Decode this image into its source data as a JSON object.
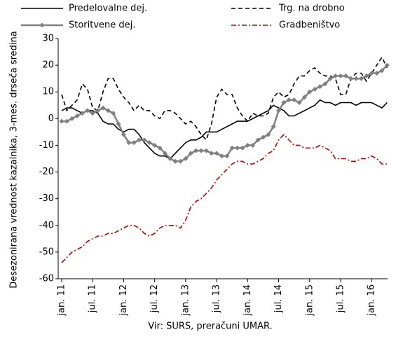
{
  "chart_data": {
    "type": "line",
    "y_label": "Desezonirana vrednost kazalnika, 3-mes. drseča sredina",
    "source": "Vir: SURS, preračuni UMAR.",
    "categories": [
      "jan. 11",
      null,
      null,
      null,
      null,
      null,
      "jul. 11",
      null,
      null,
      null,
      null,
      null,
      "jan. 12",
      null,
      null,
      null,
      null,
      null,
      "jul. 12",
      null,
      null,
      null,
      null,
      null,
      "jan. 13",
      null,
      null,
      null,
      null,
      null,
      "jul. 13",
      null,
      null,
      null,
      null,
      null,
      "jan. 14",
      null,
      null,
      null,
      null,
      null,
      "jul. 14",
      null,
      null,
      null,
      null,
      null,
      "jan. 15",
      null,
      null,
      null,
      null,
      null,
      "jul. 15",
      null,
      null,
      null,
      null,
      null,
      "jan. 16",
      null,
      null,
      null
    ],
    "ylim": [
      -60,
      30
    ],
    "yticks": [
      -60,
      -50,
      -40,
      -30,
      -20,
      -10,
      0,
      10,
      20,
      30
    ],
    "series": [
      {
        "name": "Predelovalne dej.",
        "color": "#000000",
        "dash": "solid",
        "values": [
          3,
          4,
          4,
          3,
          2,
          3,
          3,
          2,
          -1,
          -2,
          -2,
          -4,
          -5,
          -4,
          -4,
          -6,
          -9,
          -11,
          -13,
          -14,
          -14,
          -15,
          -13,
          -11,
          -9,
          -8,
          -8,
          -7,
          -5,
          -5,
          -5,
          -4,
          -3,
          -2,
          -1,
          -1,
          -1,
          0,
          1,
          2,
          3,
          5,
          4,
          3,
          1,
          1,
          2,
          3,
          4,
          5,
          7,
          6,
          6,
          5,
          6,
          6,
          6,
          5,
          6,
          6,
          6,
          5,
          4,
          6
        ]
      },
      {
        "name": "Trg. na drobno",
        "color": "#000000",
        "dash": "dashed",
        "values": [
          9,
          3,
          5,
          7,
          13,
          11,
          4,
          3,
          10,
          15,
          15,
          11,
          8,
          6,
          3,
          5,
          3,
          3,
          1,
          0,
          3,
          3,
          2,
          0,
          -2,
          -1,
          -3,
          -6,
          -8,
          -2,
          8,
          11,
          9,
          9,
          4,
          1,
          -1,
          2,
          1,
          1,
          2,
          8,
          10,
          8,
          9,
          13,
          16,
          16,
          18,
          19,
          17,
          16,
          16,
          15,
          9,
          9,
          15,
          17,
          17,
          14,
          17,
          20,
          23,
          19
        ]
      },
      {
        "name": "Storitvene dej.",
        "color": "#808080",
        "dash": "solid",
        "marker": "diamond",
        "values": [
          -1,
          -1,
          0,
          1,
          2,
          3,
          2,
          3,
          4,
          3,
          2,
          -2,
          -6,
          -9,
          -9,
          -8,
          -8,
          -9,
          -10,
          -11,
          -13,
          -15,
          -16,
          -16,
          -15,
          -13,
          -12,
          -12,
          -12,
          -13,
          -13,
          -14,
          -14,
          -11,
          -11,
          -11,
          -10,
          -10,
          -8,
          -7,
          -6,
          -3,
          3,
          6,
          7,
          7,
          6,
          8,
          10,
          11,
          12,
          13,
          15,
          16,
          16,
          16,
          15,
          15,
          15,
          16,
          17,
          17,
          18,
          20
        ]
      },
      {
        "name": "Gradbeništvo",
        "color": "#c00000",
        "dash": "dashdot",
        "values": [
          -54,
          -52,
          -50,
          -49,
          -48,
          -46,
          -45,
          -44,
          -44,
          -43,
          -43,
          -42,
          -41,
          -40,
          -40,
          -41,
          -43,
          -44,
          -43,
          -41,
          -40,
          -40,
          -40,
          -41,
          -38,
          -33,
          -31,
          -30,
          -28,
          -26,
          -23,
          -21,
          -19,
          -17,
          -16,
          -16,
          -17,
          -17,
          -16,
          -15,
          -13,
          -12,
          -8,
          -6,
          -8,
          -10,
          -10,
          -11,
          -11,
          -11,
          -10,
          -11,
          -12,
          -15,
          -15,
          -15,
          -16,
          -16,
          -15,
          -15,
          -14,
          -15,
          -17,
          -17
        ]
      }
    ]
  }
}
